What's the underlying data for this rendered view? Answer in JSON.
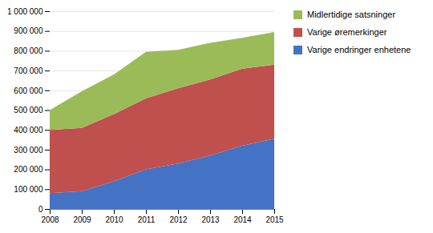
{
  "chart_data": {
    "type": "area",
    "stacked": true,
    "x": [
      2008,
      2009,
      2010,
      2011,
      2012,
      2013,
      2014,
      2015
    ],
    "series": [
      {
        "name": "Varige endringer enhetene",
        "color": "#4472C4",
        "values": [
          80000,
          90000,
          140000,
          200000,
          230000,
          270000,
          320000,
          355000
        ]
      },
      {
        "name": "Varige øremerkinger",
        "color": "#C0504D",
        "values": [
          320000,
          320000,
          340000,
          360000,
          380000,
          385000,
          390000,
          375000
        ]
      },
      {
        "name": "Midlertidige satsninger",
        "color": "#9BBB59",
        "values": [
          100000,
          185000,
          200000,
          235000,
          195000,
          185000,
          155000,
          165000
        ]
      }
    ],
    "xlim": [
      2008,
      2015
    ],
    "xticks": [
      2008,
      2009,
      2010,
      2011,
      2012,
      2013,
      2014,
      2015
    ],
    "ylim": [
      0,
      1000000
    ],
    "yticks": [
      0,
      {
        "value": 100000,
        "label": "100 000"
      },
      {
        "value": 200000,
        "label": "200 000"
      },
      {
        "value": 300000,
        "label": "300 000"
      },
      {
        "value": 400000,
        "label": "400 000"
      },
      {
        "value": 500000,
        "label": "500 000"
      },
      {
        "value": 600000,
        "label": "600 000"
      },
      {
        "value": 700000,
        "label": "700 000"
      },
      {
        "value": 800000,
        "label": "800 000"
      },
      {
        "value": 900000,
        "label": "900 000"
      },
      {
        "value": 1000000,
        "label": "1 000 000"
      }
    ],
    "grid": true,
    "legend": "right"
  }
}
